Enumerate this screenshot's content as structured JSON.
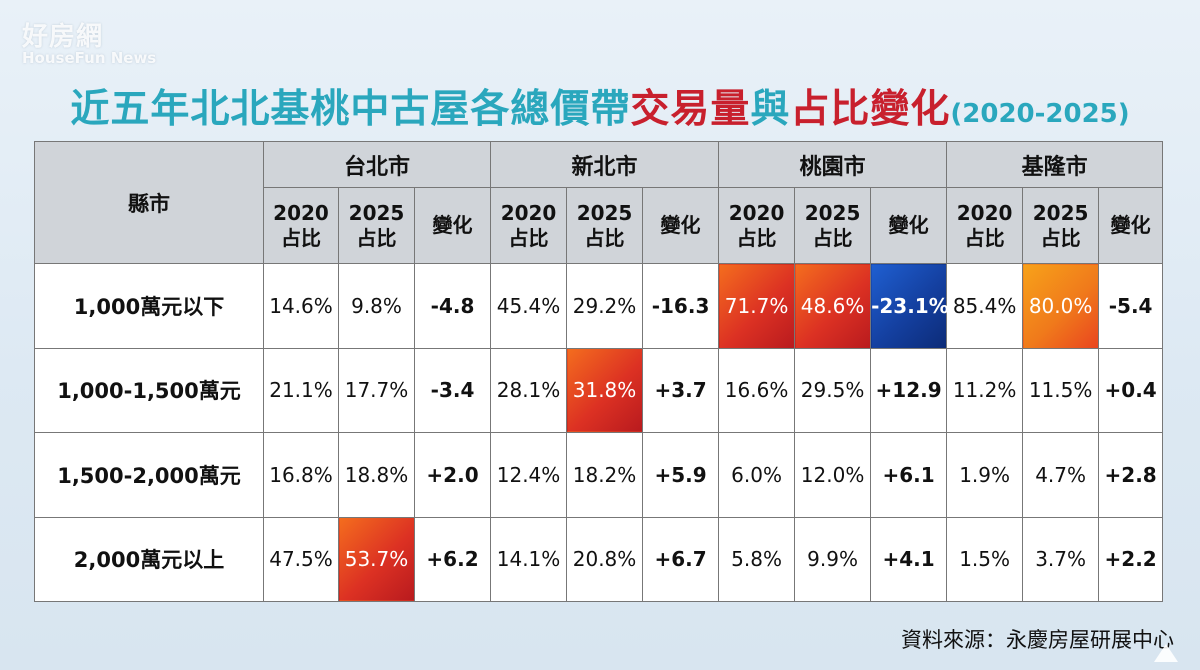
{
  "watermark": {
    "main": "好房網",
    "sub": "HouseFun News"
  },
  "title": {
    "part1": "近五年北北基桃中古屋各總價帶",
    "part2": "交易量",
    "part3": "與",
    "part4": "占比變化",
    "part5": "(2020-2025)"
  },
  "table": {
    "county_label": "縣市",
    "cities": [
      "台北市",
      "新北市",
      "桃園市",
      "基隆市"
    ],
    "sub": {
      "y2020": "2020",
      "y2025": "2025",
      "share": "占比",
      "change": "變化"
    },
    "rows": [
      {
        "label": "1,000萬元以下",
        "cells": [
          "14.6%",
          "9.8%",
          "-4.8",
          "45.4%",
          "29.2%",
          "-16.3",
          "71.7%",
          "48.6%",
          "-23.1%",
          "85.4%",
          "80.0%",
          "-5.4"
        ]
      },
      {
        "label": "1,000-1,500萬元",
        "cells": [
          "21.1%",
          "17.7%",
          "-3.4",
          "28.1%",
          "31.8%",
          "+3.7",
          "16.6%",
          "29.5%",
          "+12.9",
          "11.2%",
          "11.5%",
          "+0.4"
        ]
      },
      {
        "label": "1,500-2,000萬元",
        "cells": [
          "16.8%",
          "18.8%",
          "+2.0",
          "12.4%",
          "18.2%",
          "+5.9",
          "6.0%",
          "12.0%",
          "+6.1",
          "1.9%",
          "4.7%",
          "+2.8"
        ]
      },
      {
        "label": "2,000萬元以上",
        "cells": [
          "47.5%",
          "53.7%",
          "+6.2",
          "14.1%",
          "20.8%",
          "+6.7",
          "5.8%",
          "9.9%",
          "+4.1",
          "1.5%",
          "3.7%",
          "+2.2"
        ]
      }
    ]
  },
  "source": "資料來源：永慶房屋研展中心",
  "colors": {
    "title_teal": "#2aa7bd",
    "title_red": "#c8202d",
    "highlight_red": "#dc3123",
    "highlight_orange": "#f07a1b",
    "highlight_blue": "#143f9f",
    "header_gray": "#d0d4d9"
  },
  "icons": {
    "corner": "triangle-icon"
  }
}
